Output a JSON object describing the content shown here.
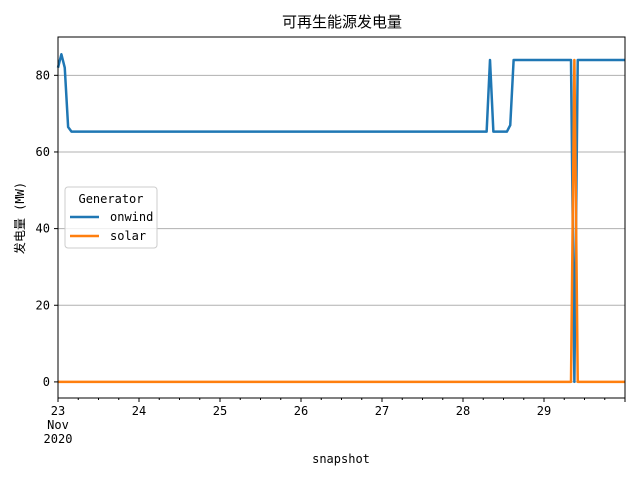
{
  "chart_data": {
    "type": "line",
    "title": "可再生能源发电量",
    "xlabel": "snapshot",
    "ylabel": "发电量 (MW)",
    "x_tick_labels": [
      [
        "23",
        "Nov",
        "2020"
      ],
      [
        "24"
      ],
      [
        "25"
      ],
      [
        "26"
      ],
      [
        "27"
      ],
      [
        "28"
      ],
      [
        "29"
      ]
    ],
    "y_ticks": [
      0,
      20,
      40,
      60,
      80
    ],
    "xlim": [
      "2020-11-23 00:00",
      "2020-11-30 00:00"
    ],
    "ylim": [
      -4.2,
      90.0
    ],
    "grid": "y",
    "legend": {
      "title": "Generator",
      "placement": "center-left"
    },
    "series": [
      {
        "name": "onwind",
        "color": "#1f77b4",
        "points": [
          [
            "2020-11-23 00:00",
            82.0
          ],
          [
            "2020-11-23 01:00",
            85.5
          ],
          [
            "2020-11-23 02:00",
            82.0
          ],
          [
            "2020-11-23 03:00",
            66.5
          ],
          [
            "2020-11-23 04:00",
            65.3
          ],
          [
            "2020-11-28 07:00",
            65.3
          ],
          [
            "2020-11-28 08:00",
            84.0
          ],
          [
            "2020-11-28 09:00",
            65.3
          ],
          [
            "2020-11-28 13:00",
            65.3
          ],
          [
            "2020-11-28 14:00",
            67.0
          ],
          [
            "2020-11-28 15:00",
            84.0
          ],
          [
            "2020-11-29 08:00",
            84.0
          ],
          [
            "2020-11-29 09:00",
            0.0
          ],
          [
            "2020-11-29 10:00",
            84.0
          ],
          [
            "2020-11-30 00:00",
            84.0
          ]
        ]
      },
      {
        "name": "solar",
        "color": "#ff7f0e",
        "points": [
          [
            "2020-11-23 00:00",
            0.0
          ],
          [
            "2020-11-29 08:00",
            0.0
          ],
          [
            "2020-11-29 09:00",
            84.0
          ],
          [
            "2020-11-29 10:00",
            0.0
          ],
          [
            "2020-11-30 00:00",
            0.0
          ]
        ]
      }
    ]
  }
}
